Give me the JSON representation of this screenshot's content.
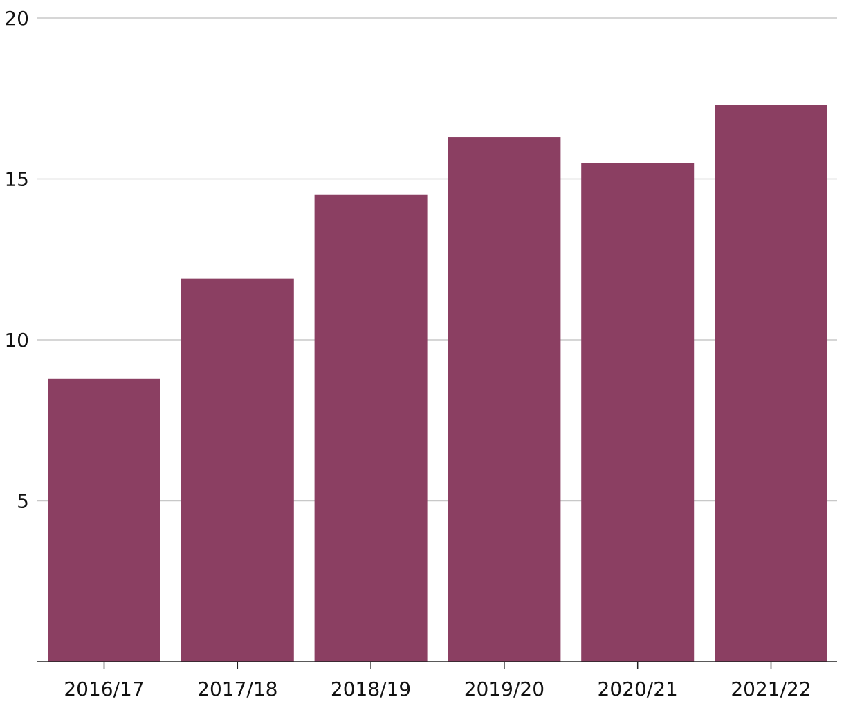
{
  "chart_data": {
    "type": "bar",
    "categories": [
      "2016/17",
      "2017/18",
      "2018/19",
      "2019/20",
      "2020/21",
      "2021/22"
    ],
    "values": [
      8.8,
      11.9,
      14.5,
      16.3,
      15.5,
      17.3
    ],
    "title": "",
    "xlabel": "",
    "ylabel": "",
    "ylim": [
      0,
      20
    ],
    "yticks": [
      5,
      10,
      15,
      20
    ],
    "grid": true,
    "legend": "none",
    "bar_color": "#8b3f62"
  }
}
